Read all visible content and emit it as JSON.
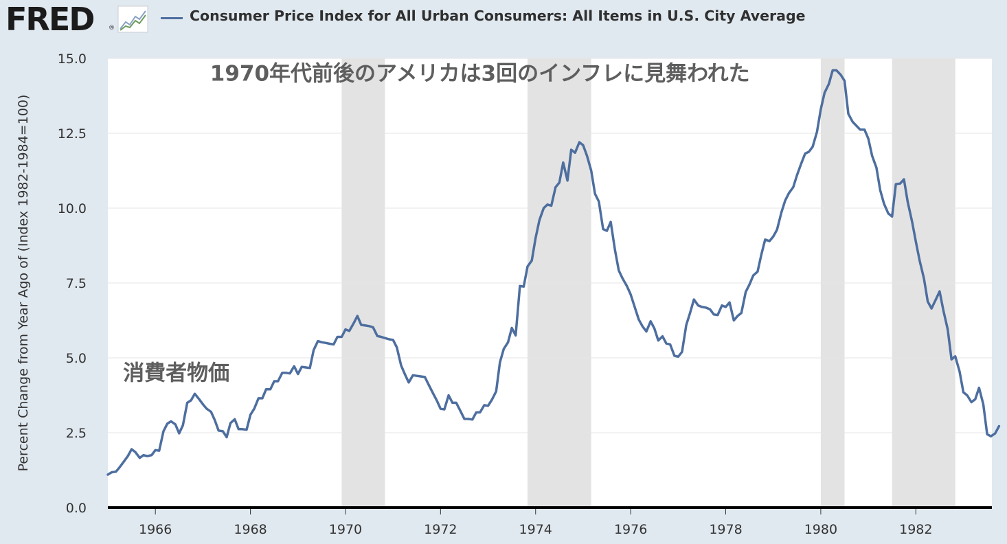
{
  "header": {
    "logo_text": "FRED",
    "logo_reg": "®",
    "series_title": "Consumer Price Index for All Urban Consumers: All Items in U.S. City Average"
  },
  "colors": {
    "line": "#4d6e9f",
    "recession": "#e3e3e3",
    "background": "#e1e9f0",
    "plot": "#ffffff"
  },
  "chart_data": {
    "type": "line",
    "title": "Consumer Price Index for All Urban Consumers: All Items in U.S. City Average",
    "ylabel": "Percent Change from Year Ago of (Index 1982-1984=100)",
    "xlabel": "",
    "xlim": [
      1965.0,
      1983.6
    ],
    "ylim": [
      0,
      15
    ],
    "x_ticks": [
      1966,
      1968,
      1970,
      1972,
      1974,
      1976,
      1978,
      1980,
      1982
    ],
    "y_ticks": [
      {
        "value": 0,
        "label": "0.0"
      },
      {
        "value": 2.5,
        "label": "2.5"
      },
      {
        "value": 5,
        "label": "5.0"
      },
      {
        "value": 7.5,
        "label": "7.5"
      },
      {
        "value": 10,
        "label": "10.0"
      },
      {
        "value": 12.5,
        "label": "12.5"
      },
      {
        "value": 15,
        "label": "15.0"
      }
    ],
    "recessions": [
      {
        "start": 1969.92,
        "end": 1970.83
      },
      {
        "start": 1973.83,
        "end": 1975.17
      },
      {
        "start": 1980.0,
        "end": 1980.5
      },
      {
        "start": 1981.5,
        "end": 1982.83
      }
    ],
    "annotations": [
      {
        "text": "1970年代前後のアメリカは3回のインフレに見舞われた",
        "x": 1967.15,
        "y": 14.25
      },
      {
        "text": "消費者物価",
        "x": 1965.32,
        "y": 4.25
      }
    ],
    "series": [
      {
        "points": [
          [
            1965.0,
            1.1
          ],
          [
            1965.08,
            1.18
          ],
          [
            1965.17,
            1.2
          ],
          [
            1965.25,
            1.35
          ],
          [
            1965.33,
            1.52
          ],
          [
            1965.42,
            1.72
          ],
          [
            1965.5,
            1.95
          ],
          [
            1965.58,
            1.85
          ],
          [
            1965.67,
            1.66
          ],
          [
            1965.75,
            1.75
          ],
          [
            1965.83,
            1.72
          ],
          [
            1965.92,
            1.75
          ],
          [
            1966.0,
            1.92
          ],
          [
            1966.08,
            1.9
          ],
          [
            1966.17,
            2.55
          ],
          [
            1966.25,
            2.8
          ],
          [
            1966.33,
            2.88
          ],
          [
            1966.42,
            2.78
          ],
          [
            1966.5,
            2.48
          ],
          [
            1966.58,
            2.75
          ],
          [
            1966.67,
            3.5
          ],
          [
            1966.75,
            3.58
          ],
          [
            1966.83,
            3.8
          ],
          [
            1966.92,
            3.62
          ],
          [
            1967.0,
            3.45
          ],
          [
            1967.08,
            3.3
          ],
          [
            1967.17,
            3.2
          ],
          [
            1967.25,
            2.92
          ],
          [
            1967.33,
            2.57
          ],
          [
            1967.42,
            2.55
          ],
          [
            1967.5,
            2.35
          ],
          [
            1967.58,
            2.82
          ],
          [
            1967.67,
            2.95
          ],
          [
            1967.75,
            2.62
          ],
          [
            1967.83,
            2.62
          ],
          [
            1967.92,
            2.6
          ],
          [
            1968.0,
            3.1
          ],
          [
            1968.08,
            3.3
          ],
          [
            1968.17,
            3.65
          ],
          [
            1968.25,
            3.65
          ],
          [
            1968.33,
            3.95
          ],
          [
            1968.42,
            3.95
          ],
          [
            1968.5,
            4.22
          ],
          [
            1968.58,
            4.22
          ],
          [
            1968.67,
            4.5
          ],
          [
            1968.75,
            4.5
          ],
          [
            1968.83,
            4.48
          ],
          [
            1968.92,
            4.72
          ],
          [
            1969.0,
            4.46
          ],
          [
            1969.08,
            4.7
          ],
          [
            1969.17,
            4.68
          ],
          [
            1969.25,
            4.66
          ],
          [
            1969.33,
            5.26
          ],
          [
            1969.42,
            5.56
          ],
          [
            1969.5,
            5.52
          ],
          [
            1969.58,
            5.5
          ],
          [
            1969.67,
            5.47
          ],
          [
            1969.75,
            5.45
          ],
          [
            1969.83,
            5.7
          ],
          [
            1969.92,
            5.7
          ],
          [
            1970.0,
            5.95
          ],
          [
            1970.08,
            5.9
          ],
          [
            1970.17,
            6.15
          ],
          [
            1970.25,
            6.4
          ],
          [
            1970.33,
            6.1
          ],
          [
            1970.42,
            6.08
          ],
          [
            1970.5,
            6.06
          ],
          [
            1970.58,
            6.02
          ],
          [
            1970.67,
            5.73
          ],
          [
            1970.75,
            5.7
          ],
          [
            1970.83,
            5.66
          ],
          [
            1970.92,
            5.62
          ],
          [
            1971.0,
            5.6
          ],
          [
            1971.08,
            5.35
          ],
          [
            1971.17,
            4.75
          ],
          [
            1971.25,
            4.45
          ],
          [
            1971.33,
            4.18
          ],
          [
            1971.42,
            4.42
          ],
          [
            1971.5,
            4.4
          ],
          [
            1971.58,
            4.38
          ],
          [
            1971.67,
            4.36
          ],
          [
            1971.75,
            4.1
          ],
          [
            1971.83,
            3.85
          ],
          [
            1971.92,
            3.58
          ],
          [
            1972.0,
            3.3
          ],
          [
            1972.08,
            3.28
          ],
          [
            1972.17,
            3.75
          ],
          [
            1972.25,
            3.5
          ],
          [
            1972.33,
            3.5
          ],
          [
            1972.42,
            3.22
          ],
          [
            1972.5,
            2.96
          ],
          [
            1972.58,
            2.96
          ],
          [
            1972.67,
            2.94
          ],
          [
            1972.75,
            3.18
          ],
          [
            1972.83,
            3.18
          ],
          [
            1972.92,
            3.42
          ],
          [
            1973.0,
            3.4
          ],
          [
            1973.08,
            3.6
          ],
          [
            1973.17,
            3.88
          ],
          [
            1973.25,
            4.85
          ],
          [
            1973.33,
            5.3
          ],
          [
            1973.42,
            5.52
          ],
          [
            1973.5,
            6.0
          ],
          [
            1973.58,
            5.75
          ],
          [
            1973.67,
            7.4
          ],
          [
            1973.75,
            7.38
          ],
          [
            1973.83,
            8.05
          ],
          [
            1973.92,
            8.25
          ],
          [
            1974.0,
            9.0
          ],
          [
            1974.08,
            9.6
          ],
          [
            1974.17,
            10.0
          ],
          [
            1974.25,
            10.12
          ],
          [
            1974.33,
            10.08
          ],
          [
            1974.42,
            10.7
          ],
          [
            1974.5,
            10.85
          ],
          [
            1974.58,
            11.52
          ],
          [
            1974.67,
            10.92
          ],
          [
            1974.75,
            11.95
          ],
          [
            1974.83,
            11.85
          ],
          [
            1974.92,
            12.2
          ],
          [
            1975.0,
            12.1
          ],
          [
            1975.08,
            11.75
          ],
          [
            1975.17,
            11.25
          ],
          [
            1975.25,
            10.48
          ],
          [
            1975.33,
            10.22
          ],
          [
            1975.42,
            9.3
          ],
          [
            1975.5,
            9.24
          ],
          [
            1975.58,
            9.54
          ],
          [
            1975.67,
            8.6
          ],
          [
            1975.75,
            7.92
          ],
          [
            1975.83,
            7.65
          ],
          [
            1975.92,
            7.4
          ],
          [
            1976.0,
            7.12
          ],
          [
            1976.08,
            6.72
          ],
          [
            1976.17,
            6.28
          ],
          [
            1976.25,
            6.05
          ],
          [
            1976.33,
            5.88
          ],
          [
            1976.42,
            6.22
          ],
          [
            1976.5,
            5.98
          ],
          [
            1976.58,
            5.58
          ],
          [
            1976.67,
            5.72
          ],
          [
            1976.75,
            5.48
          ],
          [
            1976.83,
            5.45
          ],
          [
            1976.92,
            5.07
          ],
          [
            1977.0,
            5.04
          ],
          [
            1977.08,
            5.2
          ],
          [
            1977.17,
            6.1
          ],
          [
            1977.25,
            6.5
          ],
          [
            1977.33,
            6.95
          ],
          [
            1977.42,
            6.75
          ],
          [
            1977.5,
            6.7
          ],
          [
            1977.58,
            6.68
          ],
          [
            1977.67,
            6.62
          ],
          [
            1977.75,
            6.45
          ],
          [
            1977.83,
            6.43
          ],
          [
            1977.92,
            6.75
          ],
          [
            1978.0,
            6.7
          ],
          [
            1978.08,
            6.85
          ],
          [
            1978.17,
            6.25
          ],
          [
            1978.25,
            6.4
          ],
          [
            1978.33,
            6.5
          ],
          [
            1978.42,
            7.2
          ],
          [
            1978.5,
            7.45
          ],
          [
            1978.58,
            7.75
          ],
          [
            1978.67,
            7.88
          ],
          [
            1978.75,
            8.45
          ],
          [
            1978.83,
            8.95
          ],
          [
            1978.92,
            8.9
          ],
          [
            1979.0,
            9.05
          ],
          [
            1979.08,
            9.28
          ],
          [
            1979.17,
            9.85
          ],
          [
            1979.25,
            10.25
          ],
          [
            1979.33,
            10.5
          ],
          [
            1979.42,
            10.7
          ],
          [
            1979.5,
            11.1
          ],
          [
            1979.58,
            11.45
          ],
          [
            1979.67,
            11.82
          ],
          [
            1979.75,
            11.88
          ],
          [
            1979.83,
            12.05
          ],
          [
            1979.92,
            12.55
          ],
          [
            1980.0,
            13.3
          ],
          [
            1980.08,
            13.85
          ],
          [
            1980.17,
            14.15
          ],
          [
            1980.25,
            14.6
          ],
          [
            1980.33,
            14.6
          ],
          [
            1980.42,
            14.45
          ],
          [
            1980.5,
            14.25
          ],
          [
            1980.58,
            13.15
          ],
          [
            1980.67,
            12.88
          ],
          [
            1980.75,
            12.75
          ],
          [
            1980.83,
            12.62
          ],
          [
            1980.92,
            12.62
          ],
          [
            1981.0,
            12.32
          ],
          [
            1981.08,
            11.75
          ],
          [
            1981.17,
            11.35
          ],
          [
            1981.25,
            10.6
          ],
          [
            1981.33,
            10.15
          ],
          [
            1981.42,
            9.82
          ],
          [
            1981.5,
            9.72
          ],
          [
            1981.58,
            10.8
          ],
          [
            1981.67,
            10.82
          ],
          [
            1981.75,
            10.96
          ],
          [
            1981.83,
            10.2
          ],
          [
            1981.92,
            9.55
          ],
          [
            1982.0,
            8.88
          ],
          [
            1982.08,
            8.25
          ],
          [
            1982.17,
            7.65
          ],
          [
            1982.25,
            6.88
          ],
          [
            1982.33,
            6.65
          ],
          [
            1982.42,
            6.95
          ],
          [
            1982.5,
            7.22
          ],
          [
            1982.58,
            6.58
          ],
          [
            1982.67,
            5.95
          ],
          [
            1982.75,
            4.95
          ],
          [
            1982.83,
            5.05
          ],
          [
            1982.92,
            4.55
          ],
          [
            1983.0,
            3.85
          ],
          [
            1983.08,
            3.75
          ],
          [
            1983.17,
            3.52
          ],
          [
            1983.25,
            3.62
          ],
          [
            1983.33,
            4.0
          ],
          [
            1983.42,
            3.45
          ],
          [
            1983.5,
            2.45
          ],
          [
            1983.58,
            2.38
          ],
          [
            1983.67,
            2.48
          ],
          [
            1983.75,
            2.72
          ]
        ]
      }
    ]
  }
}
